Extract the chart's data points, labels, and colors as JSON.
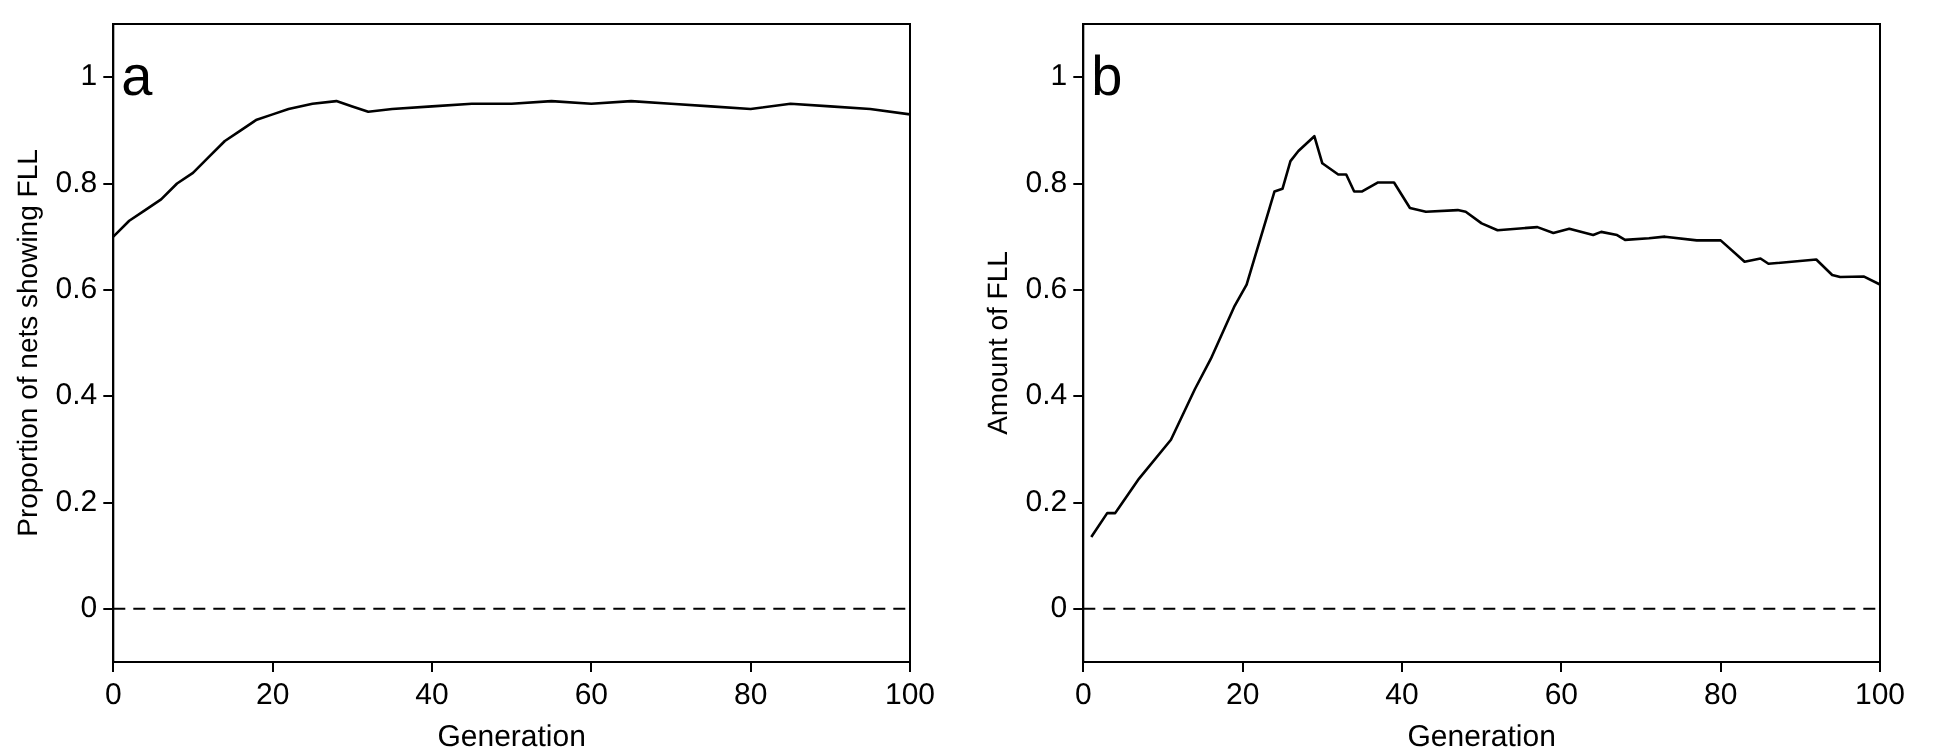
{
  "chart_data": [
    {
      "type": "line",
      "ylabel": "Proportion of nets showing FLL",
      "xlabel": "Generation",
      "annotations": [
        "a"
      ],
      "series": [
        {
          "color": "#000000",
          "x": [
            0,
            2,
            4,
            6,
            8,
            10,
            12,
            14,
            16,
            18,
            20,
            22,
            25,
            28,
            30,
            32,
            35,
            40,
            45,
            50,
            55,
            60,
            65,
            70,
            75,
            80,
            85,
            90,
            95,
            100
          ],
          "values": [
            0.7,
            0.73,
            0.75,
            0.77,
            0.8,
            0.82,
            0.85,
            0.88,
            0.9,
            0.92,
            0.93,
            0.94,
            0.95,
            0.955,
            0.945,
            0.935,
            0.94,
            0.945,
            0.95,
            0.95,
            0.955,
            0.95,
            0.955,
            0.95,
            0.945,
            0.94,
            0.95,
            0.945,
            0.94,
            0.93
          ]
        }
      ],
      "xlim": [
        0,
        100
      ],
      "xticks": [
        0,
        20,
        40,
        60,
        80,
        100
      ],
      "ylim": [
        -0.1,
        1.1
      ],
      "yticks": [
        0,
        0.2,
        0.4,
        0.6,
        0.8,
        1
      ],
      "ref_lines": [
        {
          "axis": "y",
          "value": 0,
          "color": "#000000",
          "line_style": "dashed"
        }
      ],
      "grid": false,
      "legend": false,
      "marker": "none",
      "line_style": "solid"
    },
    {
      "type": "line",
      "ylabel": "Amount of FLL",
      "xlabel": "Generation",
      "annotations": [
        "b"
      ],
      "series": [
        {
          "color": "#000000",
          "x": [
            1,
            3,
            4,
            7,
            11,
            14,
            16,
            19,
            20.5,
            23,
            24,
            25,
            26,
            27,
            29,
            30,
            32,
            33,
            34,
            35,
            37,
            39,
            41,
            43,
            47,
            48,
            50,
            52,
            57,
            59,
            61,
            64,
            65,
            67,
            68,
            71,
            73,
            77,
            80,
            83,
            85,
            86,
            92,
            94,
            95,
            98,
            100
          ],
          "values": [
            0.135,
            0.18,
            0.18,
            0.245,
            0.318,
            0.413,
            0.47,
            0.57,
            0.61,
            0.735,
            0.785,
            0.79,
            0.842,
            0.861,
            0.889,
            0.838,
            0.817,
            0.817,
            0.785,
            0.785,
            0.802,
            0.802,
            0.754,
            0.747,
            0.75,
            0.747,
            0.725,
            0.712,
            0.718,
            0.707,
            0.715,
            0.703,
            0.709,
            0.703,
            0.694,
            0.697,
            0.7,
            0.693,
            0.693,
            0.653,
            0.659,
            0.649,
            0.657,
            0.628,
            0.624,
            0.625,
            0.61
          ]
        }
      ],
      "xlim": [
        0,
        100
      ],
      "xticks": [
        0,
        20,
        40,
        60,
        80,
        100
      ],
      "ylim": [
        -0.1,
        1.1
      ],
      "yticks": [
        0,
        0.2,
        0.4,
        0.6,
        0.8,
        1
      ],
      "ref_lines": [
        {
          "axis": "y",
          "value": 0,
          "color": "#000000",
          "line_style": "dashed"
        }
      ],
      "grid": false,
      "legend": false,
      "marker": "none",
      "line_style": "solid"
    }
  ]
}
